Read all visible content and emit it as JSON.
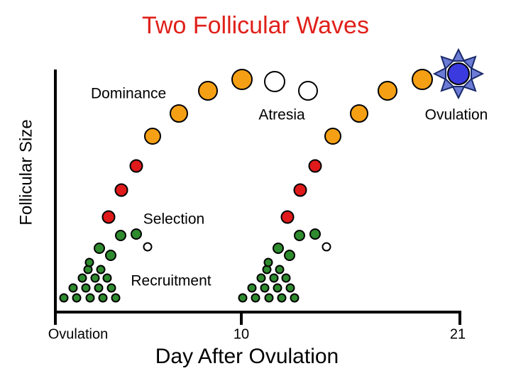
{
  "title": "Two Follicular Waves",
  "y_axis_label": "Follicular Size",
  "x_axis_label": "Day After Ovulation",
  "x_tick_labels": [
    "Ovulation",
    "10",
    "21"
  ],
  "annotations": {
    "dominance": "Dominance",
    "atresia": "Atresia",
    "ovulation": "Ovulation",
    "selection": "Selection",
    "recruitment": "Recruitment"
  }
}
